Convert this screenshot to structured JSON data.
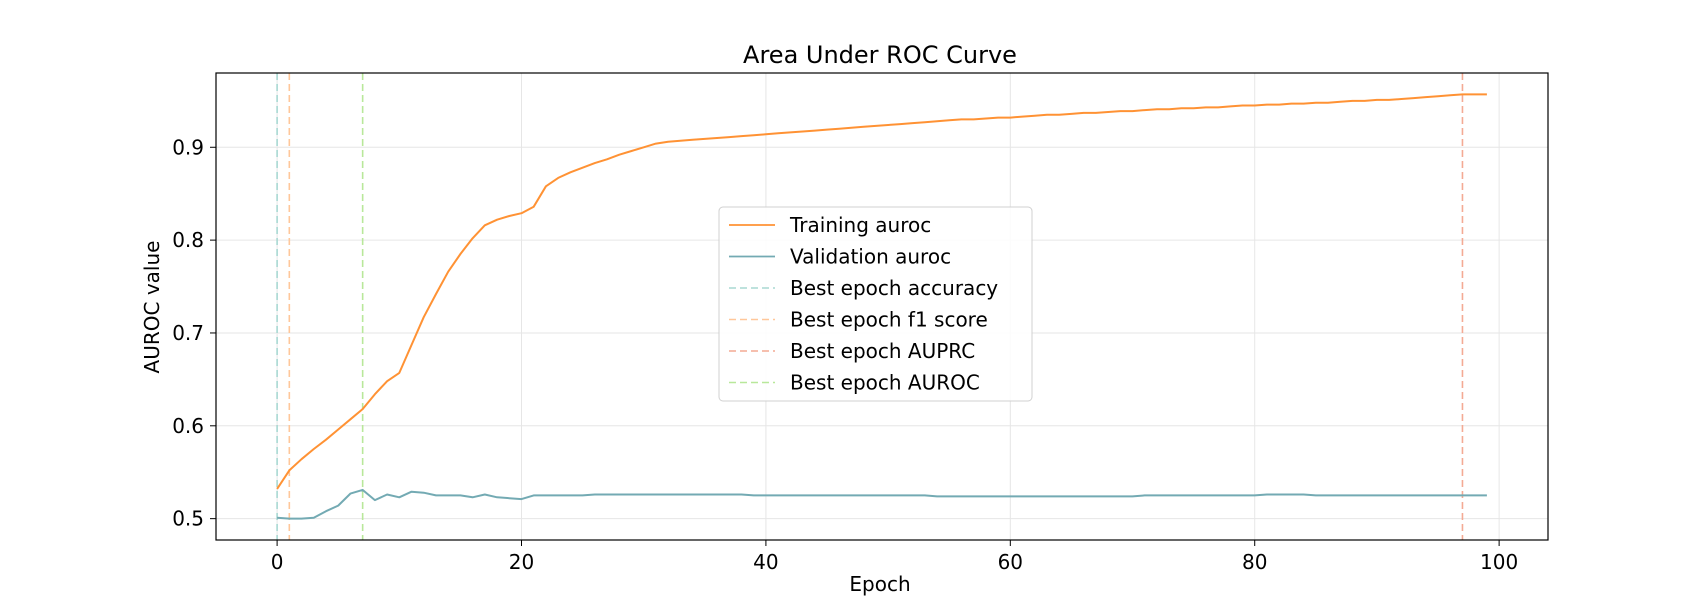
{
  "chart_data": {
    "type": "line",
    "title": "Area Under ROC Curve",
    "xlabel": "Epoch",
    "ylabel": "AUROC value",
    "xlim": [
      -5,
      104
    ],
    "ylim": [
      0.477,
      0.98
    ],
    "x_ticks": [
      0,
      20,
      40,
      60,
      80,
      100
    ],
    "y_ticks": [
      0.5,
      0.6,
      0.7,
      0.8,
      0.9
    ],
    "grid": true,
    "legend_position": "center",
    "series": [
      {
        "name": "Training auroc",
        "color": "#ff9234",
        "x": [
          0,
          1,
          2,
          3,
          4,
          5,
          6,
          7,
          8,
          9,
          10,
          11,
          12,
          13,
          14,
          15,
          16,
          17,
          18,
          19,
          20,
          21,
          22,
          23,
          24,
          25,
          26,
          27,
          28,
          29,
          30,
          31,
          32,
          33,
          34,
          35,
          36,
          37,
          38,
          39,
          40,
          41,
          42,
          43,
          44,
          45,
          46,
          47,
          48,
          49,
          50,
          51,
          52,
          53,
          54,
          55,
          56,
          57,
          58,
          59,
          60,
          61,
          62,
          63,
          64,
          65,
          66,
          67,
          68,
          69,
          70,
          71,
          72,
          73,
          74,
          75,
          76,
          77,
          78,
          79,
          80,
          81,
          82,
          83,
          84,
          85,
          86,
          87,
          88,
          89,
          90,
          91,
          92,
          93,
          94,
          95,
          96,
          97,
          98,
          99
        ],
        "values": [
          0.532,
          0.552,
          0.564,
          0.575,
          0.585,
          0.596,
          0.607,
          0.618,
          0.634,
          0.648,
          0.657,
          0.687,
          0.717,
          0.742,
          0.766,
          0.785,
          0.802,
          0.816,
          0.822,
          0.826,
          0.829,
          0.836,
          0.858,
          0.867,
          0.873,
          0.878,
          0.883,
          0.887,
          0.892,
          0.896,
          0.9,
          0.904,
          0.906,
          0.907,
          0.908,
          0.909,
          0.91,
          0.911,
          0.912,
          0.913,
          0.914,
          0.915,
          0.916,
          0.917,
          0.918,
          0.919,
          0.92,
          0.921,
          0.922,
          0.923,
          0.924,
          0.925,
          0.926,
          0.927,
          0.928,
          0.929,
          0.93,
          0.93,
          0.931,
          0.932,
          0.932,
          0.933,
          0.934,
          0.935,
          0.935,
          0.936,
          0.937,
          0.937,
          0.938,
          0.939,
          0.939,
          0.94,
          0.941,
          0.941,
          0.942,
          0.942,
          0.943,
          0.943,
          0.944,
          0.945,
          0.945,
          0.946,
          0.946,
          0.947,
          0.947,
          0.948,
          0.948,
          0.949,
          0.95,
          0.95,
          0.951,
          0.951,
          0.952,
          0.953,
          0.954,
          0.955,
          0.956,
          0.957,
          0.957,
          0.957
        ]
      },
      {
        "name": "Validation auroc",
        "color": "#73aab3",
        "x": [
          0,
          1,
          2,
          3,
          4,
          5,
          6,
          7,
          8,
          9,
          10,
          11,
          12,
          13,
          14,
          15,
          16,
          17,
          18,
          19,
          20,
          21,
          22,
          23,
          24,
          25,
          26,
          27,
          28,
          29,
          30,
          31,
          32,
          33,
          34,
          35,
          36,
          37,
          38,
          39,
          40,
          41,
          42,
          43,
          44,
          45,
          46,
          47,
          48,
          49,
          50,
          51,
          52,
          53,
          54,
          55,
          56,
          57,
          58,
          59,
          60,
          61,
          62,
          63,
          64,
          65,
          66,
          67,
          68,
          69,
          70,
          71,
          72,
          73,
          74,
          75,
          76,
          77,
          78,
          79,
          80,
          81,
          82,
          83,
          84,
          85,
          86,
          87,
          88,
          89,
          90,
          91,
          92,
          93,
          94,
          95,
          96,
          97,
          98,
          99
        ],
        "values": [
          0.501,
          0.5,
          0.5,
          0.501,
          0.508,
          0.514,
          0.527,
          0.531,
          0.52,
          0.526,
          0.523,
          0.529,
          0.528,
          0.525,
          0.525,
          0.525,
          0.523,
          0.526,
          0.523,
          0.522,
          0.521,
          0.525,
          0.525,
          0.525,
          0.525,
          0.525,
          0.526,
          0.526,
          0.526,
          0.526,
          0.526,
          0.526,
          0.526,
          0.526,
          0.526,
          0.526,
          0.526,
          0.526,
          0.526,
          0.525,
          0.525,
          0.525,
          0.525,
          0.525,
          0.525,
          0.525,
          0.525,
          0.525,
          0.525,
          0.525,
          0.525,
          0.525,
          0.525,
          0.525,
          0.524,
          0.524,
          0.524,
          0.524,
          0.524,
          0.524,
          0.524,
          0.524,
          0.524,
          0.524,
          0.524,
          0.524,
          0.524,
          0.524,
          0.524,
          0.524,
          0.524,
          0.525,
          0.525,
          0.525,
          0.525,
          0.525,
          0.525,
          0.525,
          0.525,
          0.525,
          0.525,
          0.526,
          0.526,
          0.526,
          0.526,
          0.525,
          0.525,
          0.525,
          0.525,
          0.525,
          0.525,
          0.525,
          0.525,
          0.525,
          0.525,
          0.525,
          0.525,
          0.525,
          0.525,
          0.525
        ]
      }
    ],
    "vlines": [
      {
        "name": "Best epoch accuracy",
        "x": 0,
        "color": "#a9d8d2"
      },
      {
        "name": "Best epoch f1 score",
        "x": 1,
        "color": "#ffc79a"
      },
      {
        "name": "Best epoch AUPRC",
        "x": 97,
        "color": "#f4aa94"
      },
      {
        "name": "Best epoch AUROC",
        "x": 7,
        "color": "#b8e89a"
      }
    ]
  }
}
